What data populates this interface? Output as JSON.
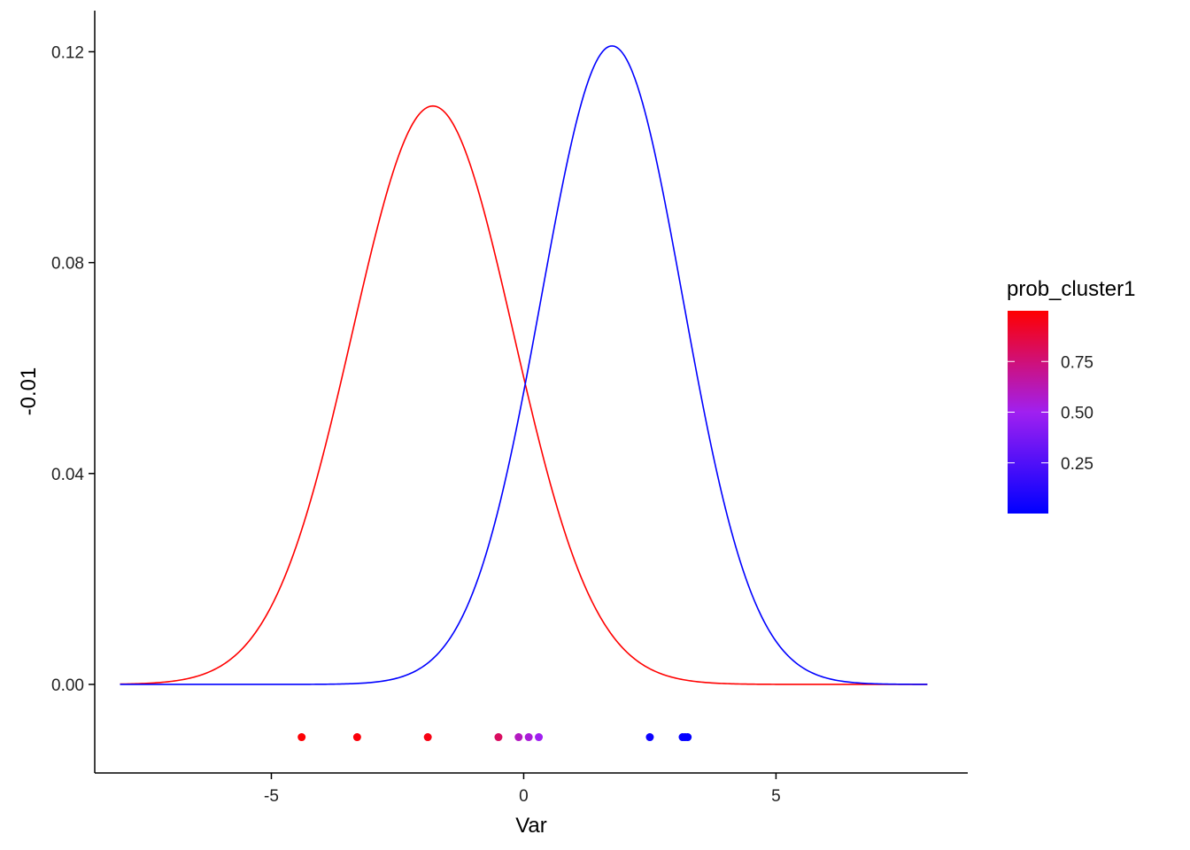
{
  "chart_data": {
    "type": "line",
    "title": "",
    "xlabel": "Var",
    "ylabel": "-0.01",
    "xlim": [
      -8.5,
      8.8
    ],
    "ylim": [
      -0.0168,
      0.1278
    ],
    "x_ticks": [
      -5,
      0,
      5
    ],
    "x_tick_labels": [
      "-5",
      "0",
      "5"
    ],
    "y_ticks": [
      0.0,
      0.04,
      0.08,
      0.12
    ],
    "y_tick_labels": [
      "0.00",
      "0.04",
      "0.08",
      "0.12"
    ],
    "grid": false,
    "curve_range": [
      -8,
      8
    ],
    "series": [
      {
        "type": "line",
        "color": "#FF0000",
        "mean": -1.8,
        "sd": 1.6,
        "weight": 0.44
      },
      {
        "type": "line",
        "color": "#0000FF",
        "mean": 1.75,
        "sd": 1.4,
        "weight": 0.425
      }
    ],
    "points": {
      "type": "scatter",
      "y": -0.01,
      "x": [
        -4.4,
        -3.3,
        -1.9,
        -0.5,
        -0.1,
        0.1,
        0.3,
        2.5,
        3.15,
        3.2,
        3.25
      ],
      "prob_cluster1": [
        0.99,
        0.98,
        0.96,
        0.8,
        0.6,
        0.55,
        0.5,
        0.04,
        0.02,
        0.02,
        0.01
      ]
    },
    "legend": {
      "title": "prob_cluster1",
      "placement": "right",
      "type": "gradient",
      "range": [
        0.0,
        1.0
      ],
      "colors": [
        "#0000FF",
        "#A020F0",
        "#FF0000"
      ],
      "ticks": [
        0.25,
        0.5,
        0.75
      ],
      "tick_labels": [
        "0.25",
        "0.50",
        "0.75"
      ]
    }
  }
}
